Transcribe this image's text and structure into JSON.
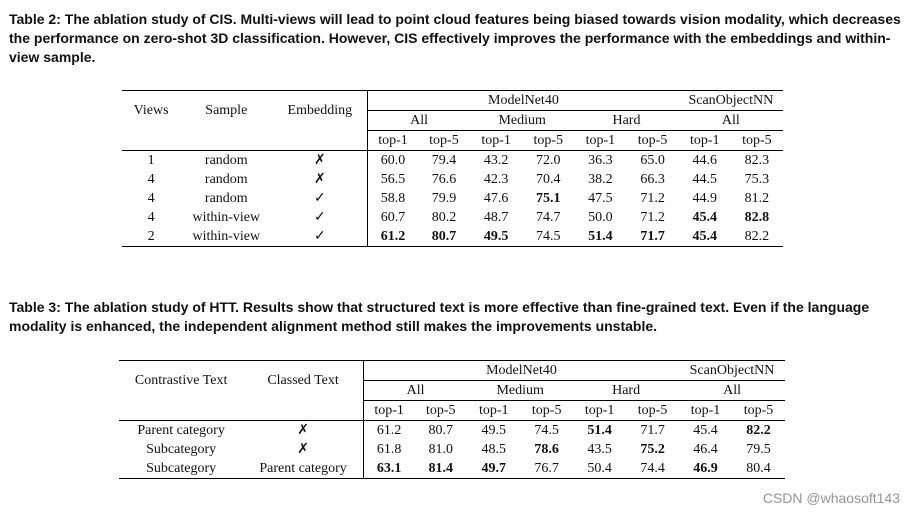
{
  "table2": {
    "caption_label": "Table 2:",
    "caption_text": " The ablation study of CIS. Multi-views will lead to point cloud features being biased towards vision modality, which decreases the performance on zero-shot 3D classification. However, CIS effectively improves the performance with the embeddings and within-view sample.",
    "col_views": "Views",
    "col_sample": "Sample",
    "col_embedding": "Embedding",
    "group_modelnet": "ModelNet40",
    "group_scan": "ScanObjectNN",
    "sub_all": "All",
    "sub_medium": "Medium",
    "sub_hard": "Hard",
    "sub_scan_all": "All",
    "top1": "top-1",
    "top5": "top-5",
    "rows": [
      {
        "views": "1",
        "sample": "random",
        "emb": "✗",
        "v": [
          "60.0",
          "79.4",
          "43.2",
          "72.0",
          "36.3",
          "65.0",
          "44.6",
          "82.3"
        ],
        "bold": [
          false,
          false,
          false,
          false,
          false,
          false,
          false,
          false
        ]
      },
      {
        "views": "4",
        "sample": "random",
        "emb": "✗",
        "v": [
          "56.5",
          "76.6",
          "42.3",
          "70.4",
          "38.2",
          "66.3",
          "44.5",
          "75.3"
        ],
        "bold": [
          false,
          false,
          false,
          false,
          false,
          false,
          false,
          false
        ]
      },
      {
        "views": "4",
        "sample": "random",
        "emb": "✓",
        "v": [
          "58.8",
          "79.9",
          "47.6",
          "75.1",
          "47.5",
          "71.2",
          "44.9",
          "81.2"
        ],
        "bold": [
          false,
          false,
          false,
          true,
          false,
          false,
          false,
          false
        ]
      },
      {
        "views": "4",
        "sample": "within-view",
        "emb": "✓",
        "v": [
          "60.7",
          "80.2",
          "48.7",
          "74.7",
          "50.0",
          "71.2",
          "45.4",
          "82.8"
        ],
        "bold": [
          false,
          false,
          false,
          false,
          false,
          false,
          true,
          true
        ]
      },
      {
        "views": "2",
        "sample": "within-view",
        "emb": "✓",
        "v": [
          "61.2",
          "80.7",
          "49.5",
          "74.5",
          "51.4",
          "71.7",
          "45.4",
          "82.2"
        ],
        "bold": [
          true,
          true,
          true,
          false,
          true,
          true,
          true,
          false
        ]
      }
    ]
  },
  "table3": {
    "caption_label": "Table 3:",
    "caption_text": " The ablation study of HTT. Results show that structured text is more effective than fine-grained text. Even if the language modality is enhanced, the independent alignment method still makes the improvements unstable.",
    "col_contrastive": "Contrastive Text",
    "col_classed": "Classed Text",
    "group_modelnet": "ModelNet40",
    "group_scan": "ScanObjectNN",
    "sub_all": "All",
    "sub_medium": "Medium",
    "sub_hard": "Hard",
    "sub_scan_all": "All",
    "top1": "top-1",
    "top5": "top-5",
    "rows": [
      {
        "contrastive": "Parent category",
        "classed": "✗",
        "v": [
          "61.2",
          "80.7",
          "49.5",
          "74.5",
          "51.4",
          "71.7",
          "45.4",
          "82.2"
        ],
        "bold": [
          false,
          false,
          false,
          false,
          true,
          false,
          false,
          true
        ]
      },
      {
        "contrastive": "Subcategory",
        "classed": "✗",
        "v": [
          "61.8",
          "81.0",
          "48.5",
          "78.6",
          "43.5",
          "75.2",
          "46.4",
          "79.5"
        ],
        "bold": [
          false,
          false,
          false,
          true,
          false,
          true,
          false,
          false
        ]
      },
      {
        "contrastive": "Subcategory",
        "classed": "Parent category",
        "v": [
          "63.1",
          "81.4",
          "49.7",
          "76.7",
          "50.4",
          "74.4",
          "46.9",
          "80.4"
        ],
        "bold": [
          true,
          true,
          true,
          false,
          false,
          false,
          true,
          false
        ]
      }
    ]
  },
  "watermark": "CSDN @whaosoft143"
}
